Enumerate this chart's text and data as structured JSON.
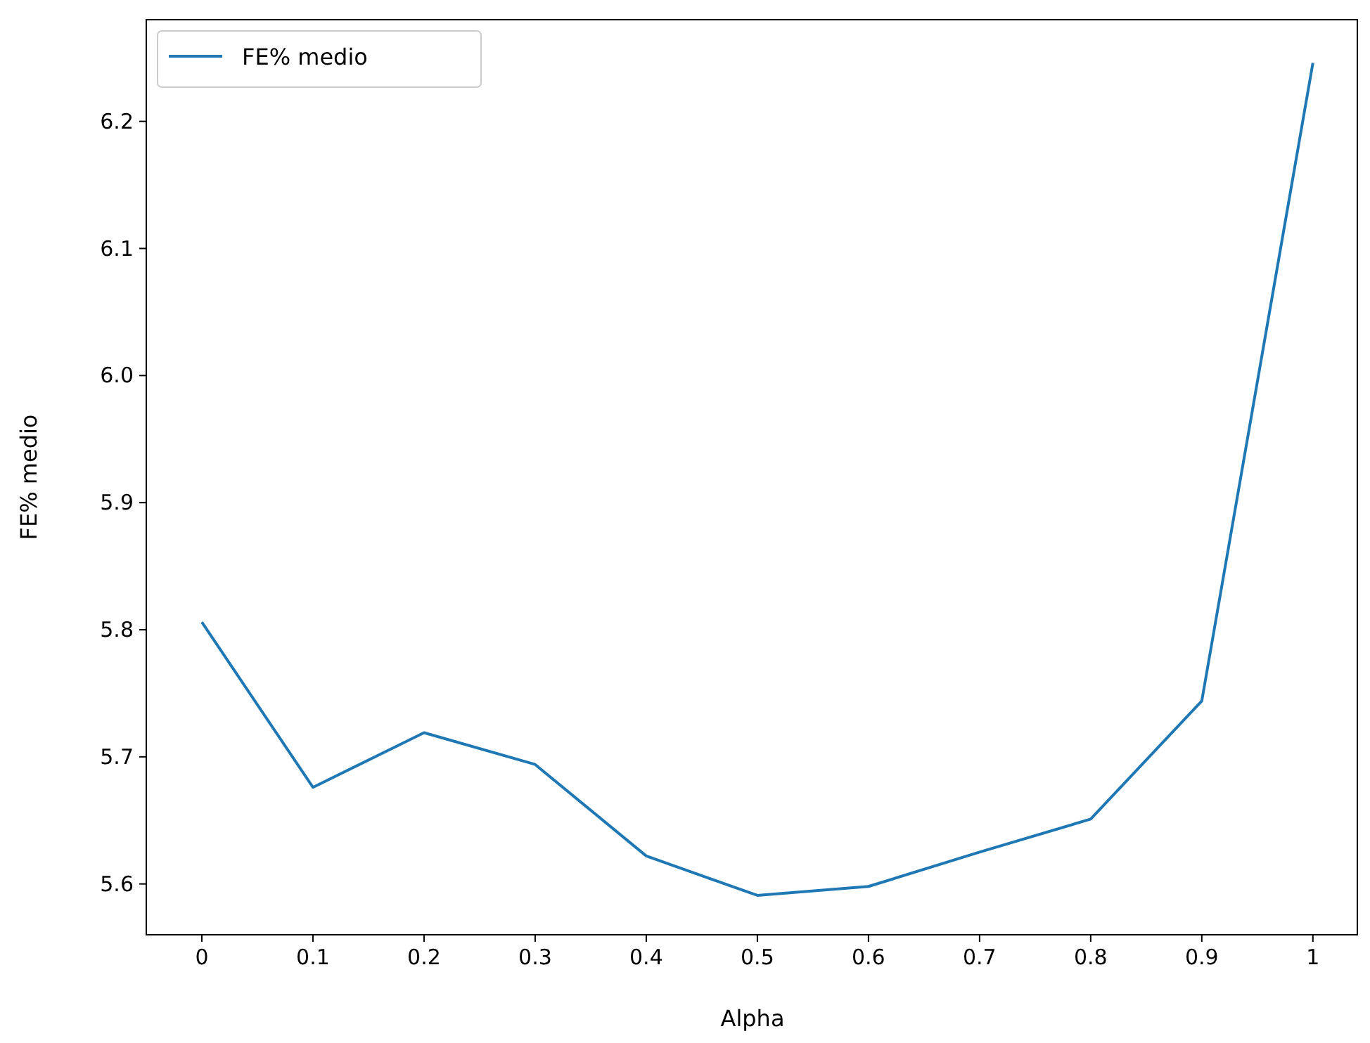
{
  "chart_data": {
    "type": "line",
    "xlabel": "Alpha",
    "ylabel": "FE% medio",
    "legend": "top left",
    "grid": false,
    "x": [
      0,
      0.1,
      0.2,
      0.3,
      0.4,
      0.5,
      0.6,
      0.7,
      0.8,
      0.9,
      1
    ],
    "series": [
      {
        "name": "FE% medio",
        "color": "#1f77b4",
        "values": [
          5.806,
          5.676,
          5.719,
          5.694,
          5.622,
          5.591,
          5.598,
          5.625,
          5.651,
          5.744,
          6.246
        ]
      }
    ],
    "xlim": [
      -0.05,
      1.04
    ],
    "xticks": [
      0,
      0.1,
      0.2,
      0.3,
      0.4,
      0.5,
      0.6,
      0.7,
      0.8,
      0.9,
      1
    ],
    "ylim": [
      5.56,
      6.28
    ],
    "yticks": [
      5.6,
      5.7,
      5.8,
      5.9,
      {
        "value": 6,
        "label": "6.0"
      },
      6.1,
      6.2
    ]
  }
}
